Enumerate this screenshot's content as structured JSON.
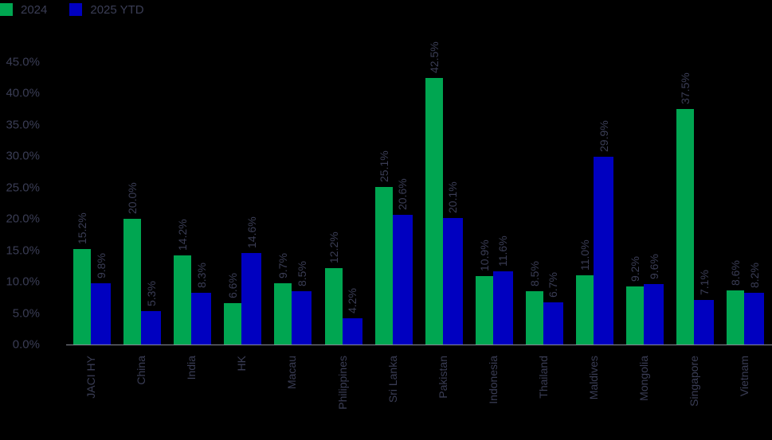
{
  "legend": [
    {
      "label": "2024",
      "color": "#00a651"
    },
    {
      "label": "2025 YTD",
      "color": "#0000c0"
    }
  ],
  "y_ticks": [
    "45.0%",
    "40.0%",
    "35.0%",
    "30.0%",
    "25.0%",
    "20.0%",
    "15.0%",
    "10.0%",
    "5.0%",
    "0.0%"
  ],
  "chart_data": {
    "type": "bar",
    "title": "",
    "xlabel": "",
    "ylabel": "",
    "ylim": [
      0,
      45
    ],
    "grid": false,
    "legend_position": "top-left",
    "categories": [
      "JACI HY",
      "China",
      "India",
      "HK",
      "Macau",
      "Philippines",
      "Sri Lanka",
      "Pakistan",
      "Indonesia",
      "Thailand",
      "Maldives",
      "Mongolia",
      "Singapore",
      "Vietnam"
    ],
    "series": [
      {
        "name": "2024",
        "color": "#00a651",
        "values": [
          15.2,
          20.0,
          14.2,
          6.6,
          9.7,
          12.2,
          25.1,
          42.5,
          10.9,
          8.5,
          11.0,
          9.2,
          37.5,
          8.6
        ],
        "labels": [
          "15.2%",
          "20.0%",
          "14.2%",
          "6.6%",
          "9.7%",
          "12.2%",
          "25.1%",
          "42.5%",
          "10.9%",
          "8.5%",
          "11.0%",
          "9.2%",
          "37.5%",
          "8.6%"
        ]
      },
      {
        "name": "2025 YTD",
        "color": "#0000c0",
        "values": [
          9.8,
          5.3,
          8.3,
          14.6,
          8.5,
          4.2,
          20.6,
          20.1,
          11.6,
          6.7,
          29.9,
          9.6,
          7.1,
          8.2
        ],
        "labels": [
          "9.8%",
          "5.3%",
          "8.3%",
          "14.6%",
          "8.5%",
          "4.2%",
          "20.6%",
          "20.1%",
          "11.6%",
          "6.7%",
          "29.9%",
          "9.6%",
          "7.1%",
          "8.2%"
        ]
      }
    ]
  }
}
